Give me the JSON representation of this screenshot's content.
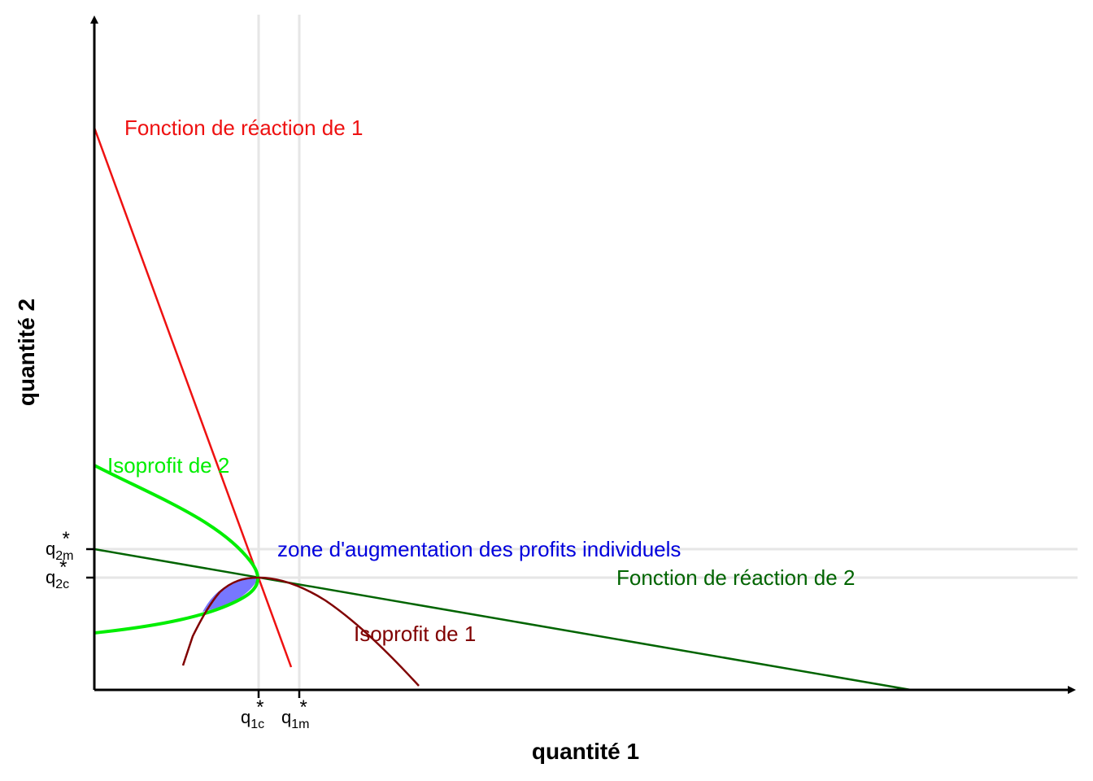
{
  "axes": {
    "x_title": "quantité 1",
    "y_title": "quantité 2"
  },
  "ticks": {
    "q1c": {
      "base": "q",
      "sub": "1c",
      "sup": "*"
    },
    "q1m": {
      "base": "q",
      "sub": "1m",
      "sup": "*"
    },
    "q2m": {
      "base": "q",
      "sub": "2m",
      "sup": "*"
    },
    "q2c": {
      "base": "q",
      "sub": "2c",
      "sup": "*"
    }
  },
  "labels": {
    "reaction1": "Fonction de réaction de 1",
    "reaction2": "Fonction de réaction de 2",
    "isoprofit1": "Isoprofit de 1",
    "isoprofit2": "Isoprofit de 2",
    "zone": "zone d'augmentation des profits individuels"
  },
  "colors": {
    "reaction1": "#ee1111",
    "reaction2": "#006400",
    "isoprofit1": "#800000",
    "isoprofit2": "#00ee00",
    "zone_fill": "#7777ff",
    "zone_text": "#0000dd",
    "grid": "#e6e6e6",
    "axis": "#000000"
  }
}
